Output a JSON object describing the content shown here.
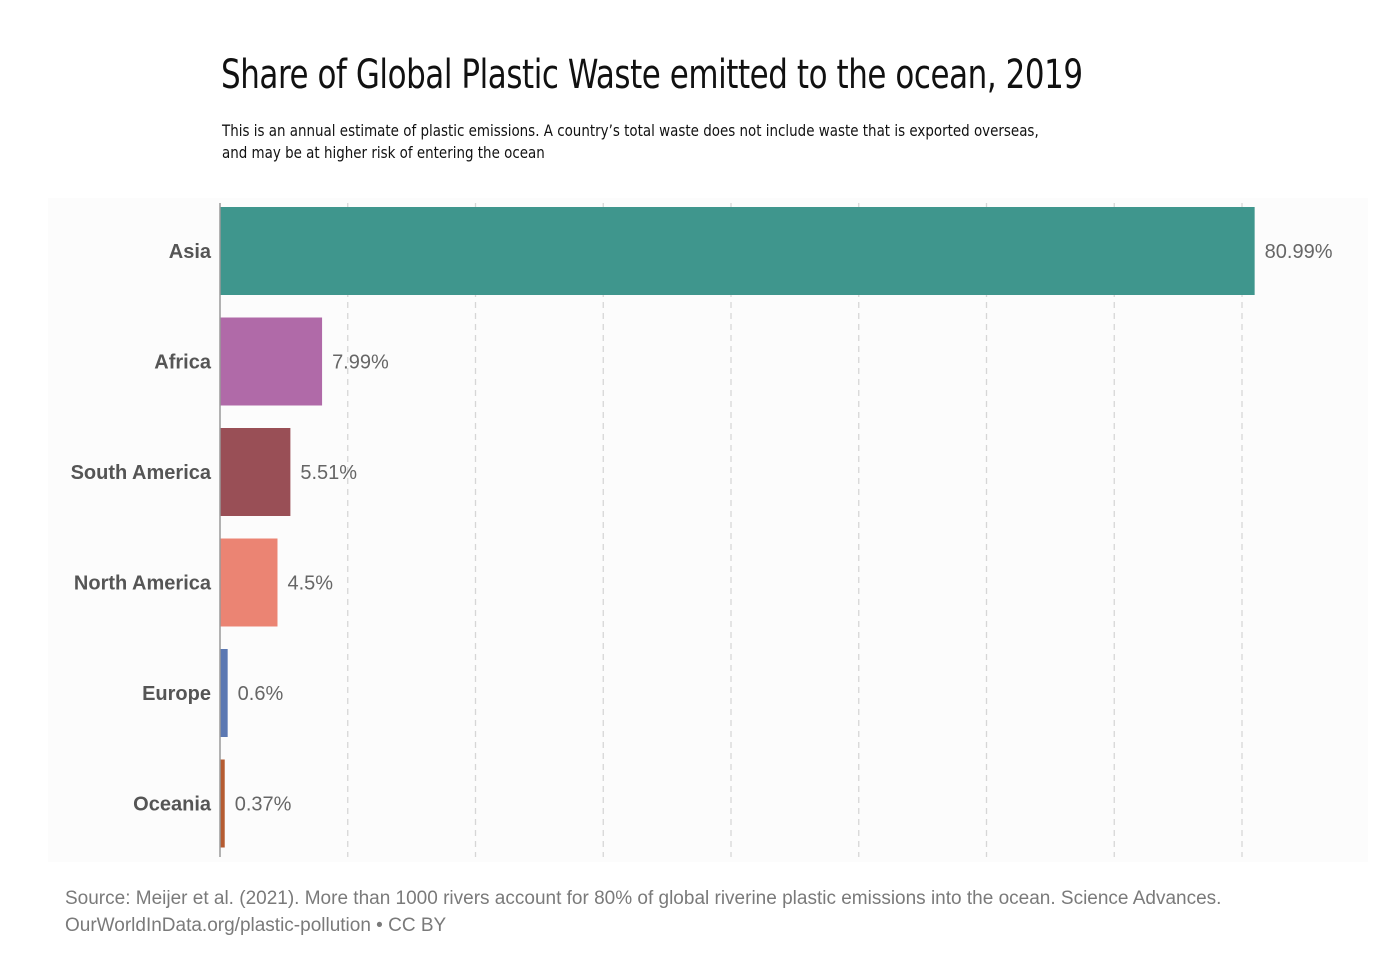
{
  "chart_data": {
    "type": "bar",
    "orientation": "horizontal",
    "title": "Share of Global Plastic Waste emitted to the ocean, 2019",
    "subtitle_lines": [
      "This is an annual estimate of plastic emissions. A country’s total waste does not include waste that is exported overseas,",
      "and may be at higher risk of entering the ocean"
    ],
    "categories": [
      "Asia",
      "Africa",
      "South America",
      "North America",
      "Europe",
      "Oceania"
    ],
    "values": [
      80.99,
      7.99,
      5.51,
      4.5,
      0.6,
      0.37
    ],
    "data_labels": [
      "80.99%",
      "7.99%",
      "5.51%",
      "4.5%",
      "0.6%",
      "0.37%"
    ],
    "colors": [
      "#3f968d",
      "#b06aa8",
      "#994f56",
      "#eb8473",
      "#5b78b2",
      "#b65c32"
    ],
    "xlim": [
      0,
      80
    ],
    "grid_step": 10,
    "grid": true,
    "xlabel": "",
    "ylabel": ""
  },
  "footer": {
    "source": "Source: Meijer et al. (2021). More than 1000 rivers account for 80% of global riverine plastic emissions into the ocean. Science Advances.",
    "credit": "OurWorldInData.org/plastic-pollution • CC BY"
  }
}
